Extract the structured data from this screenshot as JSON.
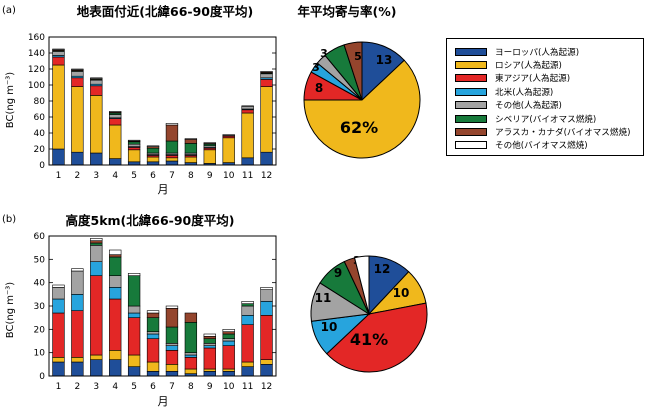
{
  "colors": {
    "europe": "#1f4e99",
    "russia": "#f0b81c",
    "east_asia": "#e32726",
    "north_america": "#27a4dd",
    "other_anthro": "#a3a3a3",
    "siberia": "#177a3b",
    "alaska_canada": "#94452d",
    "other_biomass": "#ffffff"
  },
  "legend": {
    "items": [
      {
        "key": "europe",
        "label": "ヨーロッパ(人為起源)"
      },
      {
        "key": "russia",
        "label": "ロシア(人為起源)"
      },
      {
        "key": "east_asia",
        "label": "東アジア(人為起源)"
      },
      {
        "key": "north_america",
        "label": "北米(人為起源)"
      },
      {
        "key": "other_anthro",
        "label": "その他(人為起源)"
      },
      {
        "key": "siberia",
        "label": "シベリア(バイオマス燃焼)"
      },
      {
        "key": "alaska_canada",
        "label": "アラスカ・カナダ(バイオマス燃焼)"
      },
      {
        "key": "other_biomass",
        "label": "その他(バイオマス燃焼)"
      }
    ]
  },
  "chart_data": [
    {
      "type": "bar",
      "stacked": true,
      "panel_label": "(a)",
      "title": "地表面付近(北緯66-90度平均)",
      "xlabel": "月",
      "ylabel": "BC(ng m⁻³)",
      "ylim": [
        0,
        160
      ],
      "yticks": [
        0,
        20,
        40,
        60,
        80,
        100,
        120,
        140,
        160
      ],
      "categories": [
        "1",
        "2",
        "3",
        "4",
        "5",
        "6",
        "7",
        "8",
        "9",
        "10",
        "11",
        "12"
      ],
      "series": [
        {
          "key": "europe",
          "values": [
            20,
            16,
            15,
            8,
            4,
            4,
            5,
            3,
            2,
            3,
            9,
            16
          ]
        },
        {
          "key": "russia",
          "values": [
            105,
            82,
            72,
            42,
            15,
            6,
            4,
            7,
            17,
            31,
            56,
            82
          ]
        },
        {
          "key": "east_asia",
          "values": [
            10,
            11,
            12,
            8,
            3,
            2,
            3,
            2,
            2,
            2,
            4,
            9
          ]
        },
        {
          "key": "north_america",
          "values": [
            2,
            2,
            2,
            1,
            1,
            1,
            1,
            1,
            1,
            0,
            1,
            2
          ]
        },
        {
          "key": "other_anthro",
          "values": [
            5,
            6,
            5,
            4,
            3,
            2,
            2,
            2,
            2,
            1,
            3,
            5
          ]
        },
        {
          "key": "siberia",
          "values": [
            1,
            1,
            1,
            2,
            3,
            6,
            15,
            12,
            2,
            0,
            0,
            1
          ]
        },
        {
          "key": "alaska_canada",
          "values": [
            1,
            1,
            1,
            1,
            1,
            2,
            20,
            5,
            1,
            0,
            0,
            1
          ]
        },
        {
          "key": "other_biomass",
          "values": [
            1,
            1,
            1,
            1,
            1,
            1,
            2,
            1,
            1,
            1,
            1,
            1
          ]
        }
      ]
    },
    {
      "type": "pie",
      "title": "年平均寄与率(%)",
      "slices": [
        {
          "key": "europe",
          "value": 13,
          "label": "13"
        },
        {
          "key": "russia",
          "value": 62,
          "label": "62%"
        },
        {
          "key": "east_asia",
          "value": 8,
          "label": "8"
        },
        {
          "key": "north_america",
          "value": 3,
          "label": "3"
        },
        {
          "key": "other_anthro",
          "value": 3,
          "label": "3"
        },
        {
          "key": "siberia",
          "value": 6,
          "label": ""
        },
        {
          "key": "alaska_canada",
          "value": 5,
          "label": "5"
        },
        {
          "key": "other_biomass",
          "value": 0,
          "label": ""
        }
      ]
    },
    {
      "type": "bar",
      "stacked": true,
      "panel_label": "(b)",
      "title": "高度5km(北緯66-90度平均)",
      "xlabel": "月",
      "ylabel": "BC(ng m⁻³)",
      "ylim": [
        0,
        60
      ],
      "yticks": [
        0,
        10,
        20,
        30,
        40,
        50,
        60
      ],
      "categories": [
        "1",
        "2",
        "3",
        "4",
        "5",
        "6",
        "7",
        "8",
        "9",
        "10",
        "11",
        "12"
      ],
      "series": [
        {
          "key": "europe",
          "values": [
            6,
            6,
            7,
            7,
            4,
            2,
            2,
            1,
            2,
            2,
            4,
            5
          ]
        },
        {
          "key": "russia",
          "values": [
            2,
            2,
            2,
            4,
            5,
            4,
            3,
            2,
            1,
            1,
            2,
            2
          ]
        },
        {
          "key": "east_asia",
          "values": [
            19,
            20,
            34,
            22,
            16,
            10,
            6,
            5,
            9,
            10,
            16,
            19
          ]
        },
        {
          "key": "north_america",
          "values": [
            6,
            7,
            6,
            5,
            2,
            2,
            2,
            1,
            1,
            2,
            4,
            6
          ]
        },
        {
          "key": "other_anthro",
          "values": [
            5,
            10,
            7,
            5,
            3,
            1,
            1,
            1,
            1,
            1,
            4,
            5
          ]
        },
        {
          "key": "siberia",
          "values": [
            0,
            0,
            1,
            8,
            13,
            6,
            7,
            13,
            2,
            2,
            1,
            0
          ]
        },
        {
          "key": "alaska_canada",
          "values": [
            0,
            0,
            1,
            1,
            0,
            2,
            8,
            4,
            1,
            1,
            0,
            0
          ]
        },
        {
          "key": "other_biomass",
          "values": [
            1,
            1,
            1,
            2,
            1,
            1,
            1,
            0,
            1,
            1,
            1,
            1
          ]
        }
      ]
    },
    {
      "type": "pie",
      "title": "",
      "slices": [
        {
          "key": "europe",
          "value": 12,
          "label": "12"
        },
        {
          "key": "russia",
          "value": 10,
          "label": "10"
        },
        {
          "key": "east_asia",
          "value": 41,
          "label": "41%"
        },
        {
          "key": "north_america",
          "value": 10,
          "label": "10"
        },
        {
          "key": "other_anthro",
          "value": 11,
          "label": "11"
        },
        {
          "key": "siberia",
          "value": 9,
          "label": "9"
        },
        {
          "key": "alaska_canada",
          "value": 3,
          "label": "3"
        },
        {
          "key": "other_biomass",
          "value": 4,
          "label": ""
        }
      ]
    }
  ]
}
